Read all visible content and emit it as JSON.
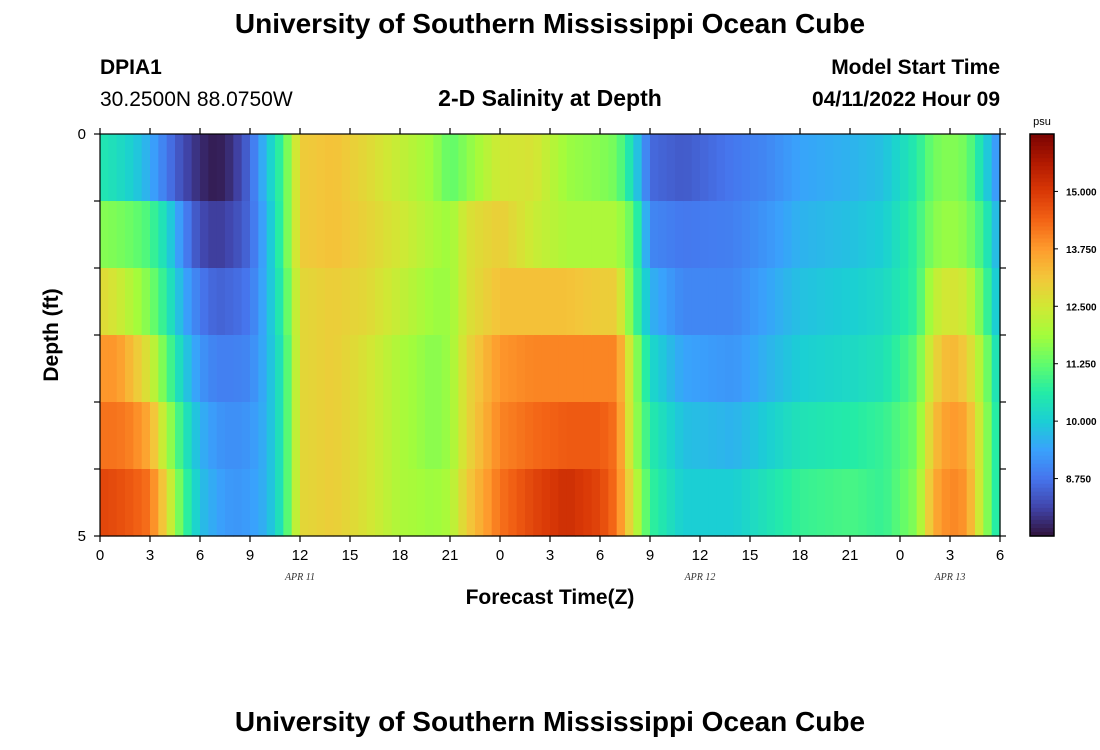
{
  "header": {
    "title": "University of Southern Mississippi Ocean Cube",
    "station": "DPIA1",
    "coords": "30.2500N  88.0750W",
    "subtitle": "2-D Salinity at Depth",
    "model_label": "Model Start Time",
    "model_time": "04/11/2022 Hour 09"
  },
  "footer": {
    "title": "University of Southern Mississippi Ocean Cube"
  },
  "chart_data": {
    "type": "heatmap",
    "title": "2-D Salinity at Depth",
    "xlabel": "Forecast Time(Z)",
    "ylabel": "Depth (ft)",
    "x_range_hours": [
      0,
      54
    ],
    "y_range": [
      0,
      5
    ],
    "x_tick_hours": [
      0,
      3,
      6,
      9,
      12,
      15,
      18,
      21,
      24,
      27,
      30,
      33,
      36,
      39,
      42,
      45,
      48,
      51,
      54
    ],
    "x_tick_labels": [
      "0",
      "3",
      "6",
      "9",
      "12",
      "15",
      "18",
      "21",
      "0",
      "3",
      "6",
      "9",
      "12",
      "15",
      "18",
      "21",
      "0",
      "3",
      "6"
    ],
    "y_tick_labels": [
      "0",
      "5"
    ],
    "date_labels": [
      {
        "text": "APR 11",
        "hour": 12
      },
      {
        "text": "APR 12",
        "hour": 36
      },
      {
        "text": "APR 13",
        "hour": 51
      }
    ],
    "colorbar": {
      "unit": "psu",
      "range": [
        7.5,
        16.25
      ],
      "ticks": [
        15.0,
        13.75,
        12.5,
        11.25,
        10.0,
        8.75
      ],
      "tick_labels": [
        "15.000",
        "13.750",
        "12.500",
        "11.250",
        "10.000",
        "8.750"
      ]
    },
    "depth_layers": [
      0,
      1,
      2,
      3,
      4,
      5
    ],
    "control_points": [
      {
        "hour": 0,
        "layers": [
          10.5,
          11.6,
          12.8,
          13.8,
          14.2,
          14.8
        ]
      },
      {
        "hour": 1,
        "layers": [
          10.3,
          11.5,
          12.5,
          13.8,
          14.2,
          14.7
        ]
      },
      {
        "hour": 2,
        "layers": [
          10.0,
          11.3,
          12.0,
          13.2,
          14.0,
          14.5
        ]
      },
      {
        "hour": 3,
        "layers": [
          9.5,
          11.0,
          11.5,
          12.5,
          13.5,
          14.2
        ]
      },
      {
        "hour": 4,
        "layers": [
          8.8,
          10.2,
          10.6,
          11.2,
          12.0,
          12.8
        ]
      },
      {
        "hour": 5,
        "layers": [
          8.2,
          9.0,
          9.5,
          10.0,
          10.6,
          11.0
        ]
      },
      {
        "hour": 6,
        "layers": [
          7.8,
          8.2,
          8.8,
          9.2,
          9.6,
          9.8
        ]
      },
      {
        "hour": 7,
        "layers": [
          7.6,
          8.0,
          8.5,
          8.9,
          9.2,
          9.4
        ]
      },
      {
        "hour": 8,
        "layers": [
          7.9,
          8.2,
          8.6,
          8.9,
          9.1,
          9.2
        ]
      },
      {
        "hour": 9,
        "layers": [
          8.6,
          8.6,
          8.8,
          9.0,
          9.2,
          9.3
        ]
      },
      {
        "hour": 10,
        "layers": [
          9.8,
          9.6,
          9.6,
          9.6,
          9.6,
          9.6
        ]
      },
      {
        "hour": 11,
        "layers": [
          11.0,
          11.0,
          10.8,
          10.6,
          10.6,
          10.6
        ]
      },
      {
        "hour": 12,
        "layers": [
          13.0,
          13.0,
          12.8,
          12.8,
          12.8,
          12.8
        ]
      },
      {
        "hour": 14,
        "layers": [
          13.2,
          13.2,
          13.0,
          13.0,
          13.0,
          13.0
        ]
      },
      {
        "hour": 16,
        "layers": [
          12.8,
          12.9,
          12.8,
          12.6,
          12.6,
          12.6
        ]
      },
      {
        "hour": 18,
        "layers": [
          12.3,
          12.5,
          12.3,
          12.0,
          12.0,
          12.0
        ]
      },
      {
        "hour": 20,
        "layers": [
          11.8,
          12.0,
          11.8,
          11.6,
          11.6,
          11.8
        ]
      },
      {
        "hour": 21,
        "layers": [
          11.2,
          11.8,
          11.8,
          11.8,
          11.8,
          12.0
        ]
      },
      {
        "hour": 22,
        "layers": [
          11.6,
          12.6,
          12.6,
          12.8,
          12.8,
          13.0
        ]
      },
      {
        "hour": 24,
        "layers": [
          12.5,
          13.0,
          13.2,
          13.8,
          14.0,
          14.2
        ]
      },
      {
        "hour": 26,
        "layers": [
          12.6,
          12.4,
          13.2,
          14.0,
          14.3,
          14.8
        ]
      },
      {
        "hour": 28,
        "layers": [
          11.8,
          12.0,
          13.2,
          14.0,
          14.5,
          15.2
        ]
      },
      {
        "hour": 30,
        "layers": [
          11.6,
          12.0,
          13.0,
          14.0,
          14.5,
          14.8
        ]
      },
      {
        "hour": 31,
        "layers": [
          11.4,
          12.0,
          13.0,
          14.0,
          14.2,
          14.2
        ]
      },
      {
        "hour": 32,
        "layers": [
          10.2,
          11.2,
          11.2,
          12.0,
          12.0,
          12.5
        ]
      },
      {
        "hour": 33,
        "layers": [
          8.6,
          9.0,
          9.6,
          10.2,
          10.6,
          10.8
        ]
      },
      {
        "hour": 35,
        "layers": [
          8.4,
          8.8,
          9.0,
          9.4,
          9.8,
          10.0
        ]
      },
      {
        "hour": 38,
        "layers": [
          8.8,
          8.9,
          9.0,
          9.2,
          9.6,
          10.0
        ]
      },
      {
        "hour": 40,
        "layers": [
          9.0,
          9.2,
          9.4,
          9.6,
          10.0,
          10.4
        ]
      },
      {
        "hour": 42,
        "layers": [
          9.4,
          9.6,
          9.8,
          10.0,
          10.4,
          10.8
        ]
      },
      {
        "hour": 45,
        "layers": [
          9.6,
          9.8,
          10.0,
          10.2,
          10.6,
          11.0
        ]
      },
      {
        "hour": 47,
        "layers": [
          9.8,
          10.0,
          10.2,
          10.4,
          10.8,
          10.8
        ]
      },
      {
        "hour": 49,
        "layers": [
          10.6,
          10.8,
          10.8,
          11.2,
          11.4,
          11.6
        ]
      },
      {
        "hour": 50,
        "layers": [
          11.4,
          11.6,
          12.2,
          12.8,
          13.2,
          13.5
        ]
      },
      {
        "hour": 51,
        "layers": [
          11.6,
          11.8,
          12.6,
          13.4,
          13.8,
          14.0
        ]
      },
      {
        "hour": 52,
        "layers": [
          11.4,
          11.6,
          12.4,
          13.0,
          13.6,
          13.8
        ]
      },
      {
        "hour": 53,
        "layers": [
          10.2,
          10.8,
          11.2,
          11.8,
          12.0,
          12.0
        ]
      },
      {
        "hour": 54,
        "layers": [
          9.0,
          9.4,
          9.6,
          10.0,
          10.2,
          10.2
        ]
      }
    ],
    "colormap": [
      "#30123b",
      "#4145ab",
      "#4675ed",
      "#39a2fc",
      "#1bcfd4",
      "#24eca6",
      "#61fc6c",
      "#a4fc3b",
      "#d1e834",
      "#f3c63a",
      "#fe9b2d",
      "#f36315",
      "#d93806",
      "#b11901",
      "#7a0402"
    ]
  }
}
